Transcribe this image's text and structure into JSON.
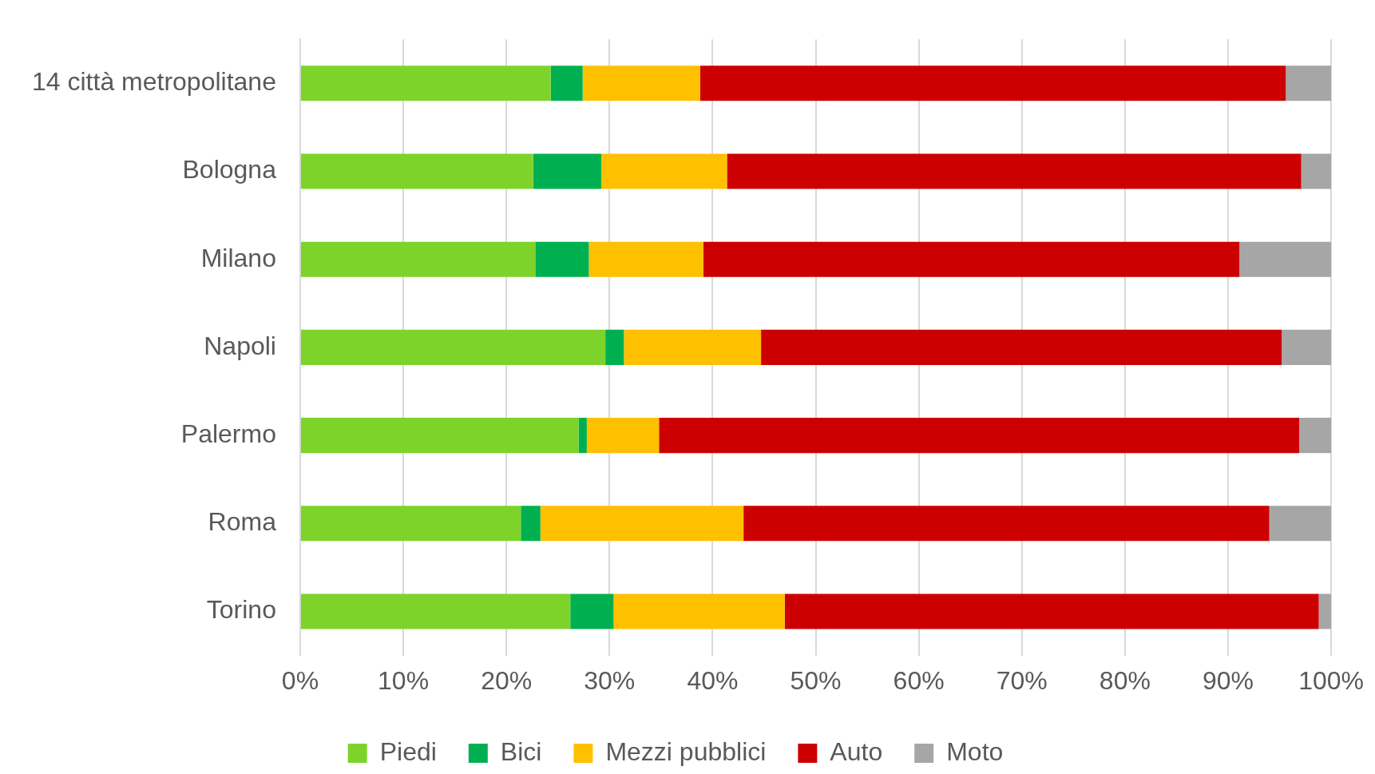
{
  "chart_data": {
    "type": "bar",
    "orientation": "horizontal",
    "stacked": true,
    "categories": [
      "14 città metropolitane",
      "Bologna",
      "Milano",
      "Napoli",
      "Palermo",
      "Roma",
      "Torino"
    ],
    "series": [
      {
        "name": "Piedi",
        "color": "#7ed32a",
        "values": [
          24.3,
          22.6,
          22.8,
          29.6,
          27.0,
          21.4,
          26.2
        ]
      },
      {
        "name": "Bici",
        "color": "#00b050",
        "values": [
          3.1,
          6.6,
          5.2,
          1.8,
          0.8,
          1.9,
          4.2
        ]
      },
      {
        "name": "Mezzi pubblici",
        "color": "#ffc000",
        "values": [
          11.4,
          12.2,
          11.1,
          13.3,
          7.0,
          19.7,
          16.6
        ]
      },
      {
        "name": "Auto",
        "color": "#cc0000",
        "values": [
          56.8,
          55.7,
          52.0,
          50.5,
          62.1,
          51.0,
          51.8
        ]
      },
      {
        "name": "Moto",
        "color": "#a6a6a6",
        "values": [
          4.4,
          2.9,
          8.9,
          4.8,
          3.1,
          6.0,
          1.2
        ]
      }
    ],
    "xlim": [
      0,
      100
    ],
    "xticks": [
      {
        "value": 0,
        "label": "0%"
      },
      {
        "value": 10,
        "label": "10%"
      },
      {
        "value": 20,
        "label": "20%"
      },
      {
        "value": 30,
        "label": "30%"
      },
      {
        "value": 40,
        "label": "40%"
      },
      {
        "value": 50,
        "label": "50%"
      },
      {
        "value": 60,
        "label": "60%"
      },
      {
        "value": 70,
        "label": "70%"
      },
      {
        "value": 80,
        "label": "80%"
      },
      {
        "value": 90,
        "label": "90%"
      },
      {
        "value": 100,
        "label": "100%"
      }
    ],
    "grid": "x",
    "legend": "bottom"
  }
}
